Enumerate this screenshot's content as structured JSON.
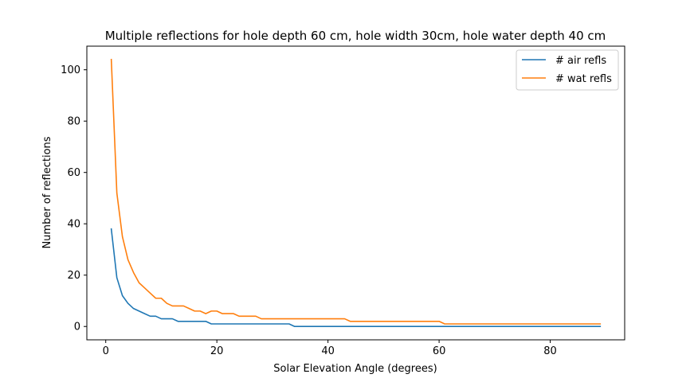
{
  "chart_data": {
    "type": "line",
    "title": "Multiple reflections for hole depth 60 cm, hole width 30cm, hole water depth 40 cm",
    "xlabel": "Solar Elevation Angle (degrees)",
    "ylabel": "Number of reflections",
    "xlim": [
      -3.4,
      93.4
    ],
    "ylim": [
      -5.2,
      109.2
    ],
    "xticks": [
      0,
      20,
      40,
      60,
      80
    ],
    "yticks": [
      0,
      20,
      40,
      60,
      80,
      100
    ],
    "grid": false,
    "legend_position": "top-right",
    "x": [
      1,
      2,
      3,
      4,
      5,
      6,
      7,
      8,
      9,
      10,
      11,
      12,
      13,
      14,
      15,
      16,
      17,
      18,
      19,
      20,
      21,
      22,
      23,
      24,
      25,
      26,
      27,
      28,
      29,
      30,
      31,
      32,
      33,
      34,
      35,
      36,
      37,
      38,
      39,
      40,
      41,
      42,
      43,
      44,
      45,
      46,
      47,
      48,
      49,
      50,
      51,
      52,
      53,
      54,
      55,
      56,
      57,
      58,
      59,
      60,
      61,
      62,
      63,
      64,
      65,
      66,
      67,
      68,
      69,
      70,
      71,
      72,
      73,
      74,
      75,
      76,
      77,
      78,
      79,
      80,
      81,
      82,
      83,
      84,
      85,
      86,
      87,
      88,
      89
    ],
    "series": [
      {
        "name": "# air refls",
        "color": "#1f77b4",
        "values": [
          38,
          19,
          12,
          9,
          7,
          6,
          5,
          4,
          4,
          3,
          3,
          3,
          2,
          2,
          2,
          2,
          2,
          2,
          1,
          1,
          1,
          1,
          1,
          1,
          1,
          1,
          1,
          1,
          1,
          1,
          1,
          1,
          1,
          0,
          0,
          0,
          0,
          0,
          0,
          0,
          0,
          0,
          0,
          0,
          0,
          0,
          0,
          0,
          0,
          0,
          0,
          0,
          0,
          0,
          0,
          0,
          0,
          0,
          0,
          0,
          0,
          0,
          0,
          0,
          0,
          0,
          0,
          0,
          0,
          0,
          0,
          0,
          0,
          0,
          0,
          0,
          0,
          0,
          0,
          0,
          0,
          0,
          0,
          0,
          0,
          0,
          0,
          0,
          0
        ]
      },
      {
        "name": "# wat refls",
        "color": "#ff7f0e",
        "values": [
          104,
          52,
          35,
          26,
          21,
          17,
          15,
          13,
          11,
          11,
          9,
          8,
          8,
          8,
          7,
          6,
          6,
          5,
          6,
          6,
          5,
          5,
          5,
          4,
          4,
          4,
          4,
          3,
          3,
          3,
          3,
          3,
          3,
          3,
          3,
          3,
          3,
          3,
          3,
          3,
          3,
          3,
          3,
          2,
          2,
          2,
          2,
          2,
          2,
          2,
          2,
          2,
          2,
          2,
          2,
          2,
          2,
          2,
          2,
          2,
          1,
          1,
          1,
          1,
          1,
          1,
          1,
          1,
          1,
          1,
          1,
          1,
          1,
          1,
          1,
          1,
          1,
          1,
          1,
          1,
          1,
          1,
          1,
          1,
          1,
          1,
          1,
          1,
          1
        ]
      }
    ]
  }
}
